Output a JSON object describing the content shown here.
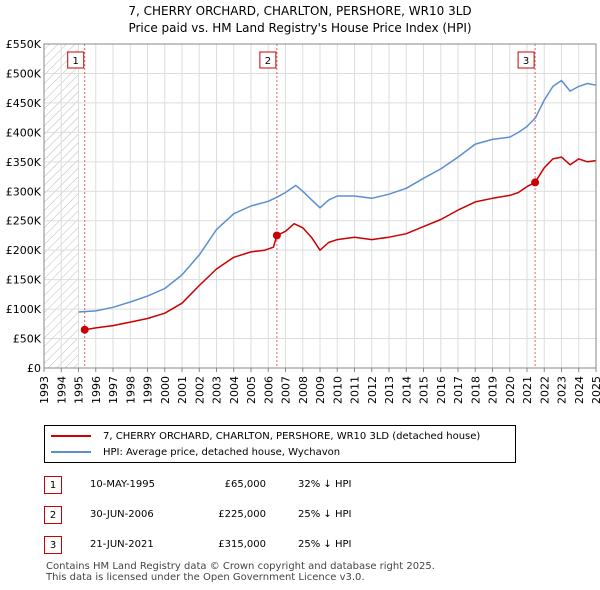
{
  "chart_data": {
    "type": "line",
    "title": "7, CHERRY ORCHARD, CHARLTON, PERSHORE, WR10 3LD",
    "subtitle": "Price paid vs. HM Land Registry's House Price Index (HPI)",
    "xlim": [
      1993,
      2025
    ],
    "ylim": [
      0,
      550000
    ],
    "x_ticks": [
      "1993",
      "1994",
      "1995",
      "1996",
      "1997",
      "1998",
      "1999",
      "2000",
      "2001",
      "2002",
      "2003",
      "2004",
      "2005",
      "2006",
      "2007",
      "2008",
      "2009",
      "2010",
      "2011",
      "2012",
      "2013",
      "2014",
      "2015",
      "2016",
      "2017",
      "2018",
      "2019",
      "2020",
      "2021",
      "2022",
      "2023",
      "2024",
      "2025"
    ],
    "y_ticks": [
      {
        "value": 0,
        "label": "£0"
      },
      {
        "value": 50000,
        "label": "£50K"
      },
      {
        "value": 100000,
        "label": "£100K"
      },
      {
        "value": 150000,
        "label": "£150K"
      },
      {
        "value": 200000,
        "label": "£200K"
      },
      {
        "value": 250000,
        "label": "£250K"
      },
      {
        "value": 300000,
        "label": "£300K"
      },
      {
        "value": 350000,
        "label": "£350K"
      },
      {
        "value": 400000,
        "label": "£400K"
      },
      {
        "value": 450000,
        "label": "£450K"
      },
      {
        "value": 500000,
        "label": "£500K"
      },
      {
        "value": 550000,
        "label": "£550K"
      }
    ],
    "hatch_end": 1995.0,
    "series": [
      {
        "name": "7, CHERRY ORCHARD, CHARLTON, PERSHORE, WR10 3LD (detached house)",
        "color": "#cc0000",
        "points": [
          [
            1995.36,
            65000
          ],
          [
            1996.0,
            68000
          ],
          [
            1997.0,
            72000
          ],
          [
            1998.0,
            78000
          ],
          [
            1999.0,
            84000
          ],
          [
            2000.0,
            93000
          ],
          [
            2001.0,
            110000
          ],
          [
            2002.0,
            140000
          ],
          [
            2003.0,
            168000
          ],
          [
            2004.0,
            188000
          ],
          [
            2005.0,
            197000
          ],
          [
            2005.8,
            200000
          ],
          [
            2006.3,
            205000
          ],
          [
            2006.5,
            225000
          ],
          [
            2007.0,
            232000
          ],
          [
            2007.5,
            245000
          ],
          [
            2008.0,
            238000
          ],
          [
            2008.5,
            222000
          ],
          [
            2009.0,
            200000
          ],
          [
            2009.5,
            213000
          ],
          [
            2010.0,
            218000
          ],
          [
            2011.0,
            222000
          ],
          [
            2012.0,
            218000
          ],
          [
            2013.0,
            222000
          ],
          [
            2014.0,
            228000
          ],
          [
            2015.0,
            240000
          ],
          [
            2016.0,
            252000
          ],
          [
            2017.0,
            268000
          ],
          [
            2018.0,
            282000
          ],
          [
            2019.0,
            288000
          ],
          [
            2020.0,
            293000
          ],
          [
            2020.5,
            298000
          ],
          [
            2021.0,
            308000
          ],
          [
            2021.47,
            315000
          ],
          [
            2022.0,
            340000
          ],
          [
            2022.5,
            355000
          ],
          [
            2023.0,
            358000
          ],
          [
            2023.5,
            345000
          ],
          [
            2024.0,
            355000
          ],
          [
            2024.5,
            350000
          ],
          [
            2025.0,
            352000
          ]
        ]
      },
      {
        "name": "HPI: Average price, detached house, Wychavon",
        "color": "#5b8fd0",
        "points": [
          [
            1995.0,
            95000
          ],
          [
            1996.0,
            97000
          ],
          [
            1997.0,
            103000
          ],
          [
            1998.0,
            112000
          ],
          [
            1999.0,
            122000
          ],
          [
            2000.0,
            135000
          ],
          [
            2001.0,
            158000
          ],
          [
            2002.0,
            192000
          ],
          [
            2003.0,
            235000
          ],
          [
            2004.0,
            262000
          ],
          [
            2005.0,
            275000
          ],
          [
            2006.0,
            283000
          ],
          [
            2006.5,
            290000
          ],
          [
            2007.0,
            298000
          ],
          [
            2007.6,
            310000
          ],
          [
            2008.0,
            300000
          ],
          [
            2008.6,
            283000
          ],
          [
            2009.0,
            272000
          ],
          [
            2009.5,
            285000
          ],
          [
            2010.0,
            292000
          ],
          [
            2011.0,
            292000
          ],
          [
            2012.0,
            288000
          ],
          [
            2013.0,
            295000
          ],
          [
            2014.0,
            305000
          ],
          [
            2015.0,
            322000
          ],
          [
            2016.0,
            338000
          ],
          [
            2017.0,
            358000
          ],
          [
            2018.0,
            380000
          ],
          [
            2019.0,
            388000
          ],
          [
            2020.0,
            392000
          ],
          [
            2020.5,
            400000
          ],
          [
            2021.0,
            410000
          ],
          [
            2021.5,
            425000
          ],
          [
            2022.0,
            455000
          ],
          [
            2022.5,
            478000
          ],
          [
            2023.0,
            488000
          ],
          [
            2023.5,
            470000
          ],
          [
            2024.0,
            478000
          ],
          [
            2024.5,
            483000
          ],
          [
            2025.0,
            480000
          ]
        ]
      }
    ],
    "transactions": [
      {
        "num": "1",
        "x": 1995.36,
        "price": 65000,
        "date": "10-MAY-1995",
        "price_label": "£65,000",
        "hpi_label": "32% ↓ HPI"
      },
      {
        "num": "2",
        "x": 2006.5,
        "price": 225000,
        "date": "30-JUN-2006",
        "price_label": "£225,000",
        "hpi_label": "25% ↓ HPI"
      },
      {
        "num": "3",
        "x": 2021.47,
        "price": 315000,
        "date": "21-JUN-2021",
        "price_label": "£315,000",
        "hpi_label": "25% ↓ HPI"
      }
    ]
  },
  "legend": {
    "property_label": "7, CHERRY ORCHARD, CHARLTON, PERSHORE, WR10 3LD (detached house)",
    "hpi_label": "HPI: Average price, detached house, Wychavon"
  },
  "footer": {
    "line1": "Contains HM Land Registry data © Crown copyright and database right 2025.",
    "line2": "This data is licensed under the Open Government Licence v3.0."
  }
}
